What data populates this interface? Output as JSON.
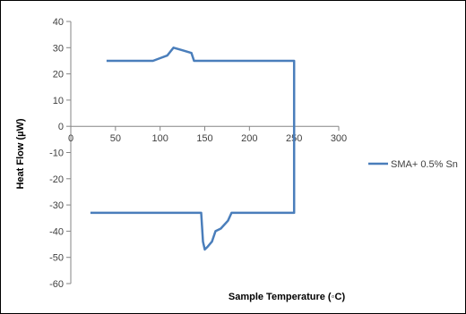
{
  "chart_data": {
    "type": "line",
    "title": "",
    "xlabel": "Sample Temperature (◦C)",
    "ylabel": "Heat Flow (µW)",
    "xlim": [
      0,
      300
    ],
    "ylim": [
      -60,
      40
    ],
    "x_ticks": [
      0,
      50,
      100,
      150,
      200,
      250,
      300
    ],
    "y_ticks": [
      40,
      30,
      20,
      10,
      0,
      -10,
      -20,
      -30,
      -40,
      -50,
      -60
    ],
    "x_tick_labels": [
      "0",
      "50",
      "100",
      "150",
      "200",
      "250",
      "300"
    ],
    "y_tick_labels": [
      "40",
      "30",
      "20",
      "10",
      "0",
      "-10",
      "-20",
      "-30",
      "-40",
      "-50",
      "-60"
    ],
    "grid": false,
    "legend_position": "right",
    "series": [
      {
        "name": "SMA+ 0.5% Sn",
        "color": "#4a7ebb",
        "x": [
          40,
          92,
          100,
          108,
          115,
          125,
          135,
          138,
          250,
          250,
          180,
          176,
          168,
          162,
          158,
          153,
          150,
          148,
          146,
          22
        ],
        "y": [
          25,
          25,
          26,
          27,
          30,
          29,
          28,
          25,
          25,
          -33,
          -33,
          -36,
          -39,
          -40,
          -44,
          -46,
          -47,
          -44,
          -33,
          -33
        ]
      }
    ]
  }
}
